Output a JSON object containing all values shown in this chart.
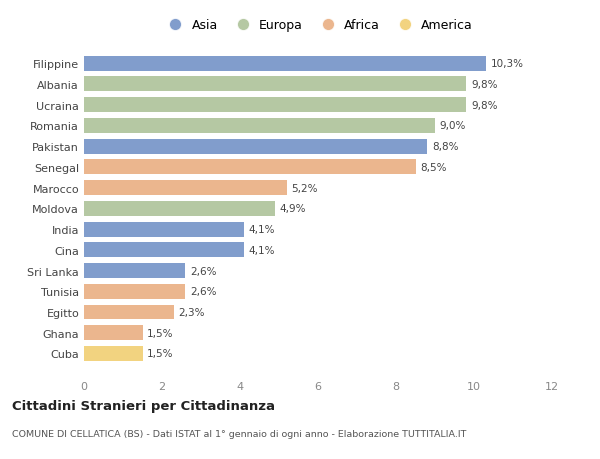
{
  "countries": [
    "Filippine",
    "Albania",
    "Ucraina",
    "Romania",
    "Pakistan",
    "Senegal",
    "Marocco",
    "Moldova",
    "India",
    "Cina",
    "Sri Lanka",
    "Tunisia",
    "Egitto",
    "Ghana",
    "Cuba"
  ],
  "values": [
    10.3,
    9.8,
    9.8,
    9.0,
    8.8,
    8.5,
    5.2,
    4.9,
    4.1,
    4.1,
    2.6,
    2.6,
    2.3,
    1.5,
    1.5
  ],
  "labels": [
    "10,3%",
    "9,8%",
    "9,8%",
    "9,0%",
    "8,8%",
    "8,5%",
    "5,2%",
    "4,9%",
    "4,1%",
    "4,1%",
    "2,6%",
    "2,6%",
    "2,3%",
    "1,5%",
    "1,5%"
  ],
  "continents": [
    "Asia",
    "Europa",
    "Europa",
    "Europa",
    "Asia",
    "Africa",
    "Africa",
    "Europa",
    "Asia",
    "Asia",
    "Asia",
    "Africa",
    "Africa",
    "Africa",
    "America"
  ],
  "colors": {
    "Asia": "#6b8cc4",
    "Europa": "#a8bf93",
    "Africa": "#e8aa7a",
    "America": "#f0cc6a"
  },
  "legend_order": [
    "Asia",
    "Europa",
    "Africa",
    "America"
  ],
  "title": "Cittadini Stranieri per Cittadinanza",
  "subtitle": "COMUNE DI CELLATICA (BS) - Dati ISTAT al 1° gennaio di ogni anno - Elaborazione TUTTITALIA.IT",
  "xlim": [
    0,
    12
  ],
  "xticks": [
    0,
    2,
    4,
    6,
    8,
    10,
    12
  ],
  "background_color": "#ffffff"
}
